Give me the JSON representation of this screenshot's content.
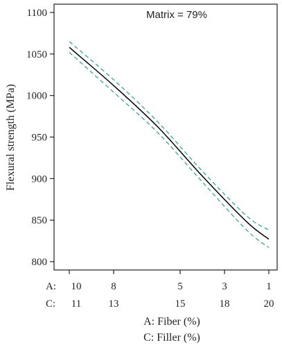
{
  "chart_data": {
    "type": "line",
    "annotation": "Matrix = 79%",
    "ylabel": "Flexural strength (MPa)",
    "xlabel_lines": [
      "A: Fiber (%)",
      "C: Filler (%)"
    ],
    "x_row_labels": [
      "A:",
      "C:"
    ],
    "x_ticks_a": [
      "10",
      "8",
      "5",
      "3",
      "1"
    ],
    "x_ticks_c": [
      "11",
      "13",
      "15",
      "18",
      "20"
    ],
    "ylim": [
      790,
      1110
    ],
    "yticks": [
      800,
      850,
      900,
      950,
      1000,
      1050,
      1100
    ],
    "grid": false,
    "colors": {
      "prediction": "#000000",
      "interval": "#3aa39a",
      "axis": "#231f20"
    },
    "series": [
      {
        "role": "prediction",
        "style": "solid",
        "x": [
          10,
          8,
          6,
          4,
          2,
          1
        ],
        "y": [
          1058,
          1012,
          962,
          903,
          848,
          827
        ]
      },
      {
        "role": "upper",
        "style": "dashed",
        "x": [
          10,
          8,
          6,
          4,
          2,
          1
        ],
        "y": [
          1065,
          1019,
          968,
          909,
          855,
          838
        ]
      },
      {
        "role": "lower",
        "style": "dashed",
        "x": [
          10,
          8,
          6,
          4,
          2,
          1
        ],
        "y": [
          1052,
          1004,
          955,
          896,
          838,
          817
        ]
      }
    ]
  }
}
